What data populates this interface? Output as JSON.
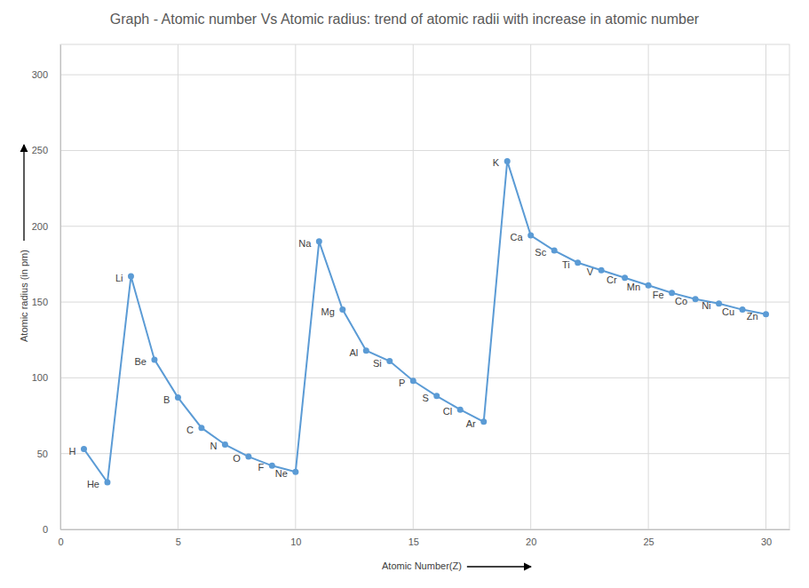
{
  "chart_data": {
    "type": "line",
    "title": "Graph - Atomic number Vs Atomic radius: trend of atomic radii with increase in atomic number",
    "x_label": "Atomic Number(Z)",
    "y_label": "Atomic  radius (in pm)",
    "x": [
      1,
      2,
      3,
      4,
      5,
      6,
      7,
      8,
      9,
      10,
      11,
      12,
      13,
      14,
      15,
      16,
      17,
      18,
      19,
      20,
      21,
      22,
      23,
      24,
      25,
      26,
      27,
      28,
      29,
      30
    ],
    "values": [
      53,
      31,
      167,
      112,
      87,
      67,
      56,
      48,
      42,
      38,
      190,
      145,
      118,
      111,
      98,
      88,
      79,
      71,
      243,
      194,
      184,
      176,
      171,
      166,
      161,
      156,
      152,
      149,
      145,
      142
    ],
    "point_labels": [
      "H",
      "He",
      "Li",
      "Be",
      "B",
      "C",
      "N",
      "O",
      "F",
      "Ne",
      "Na",
      "Mg",
      "Al",
      "Si",
      "P",
      "S",
      "Cl",
      "Ar",
      "K",
      "Ca",
      "Sc",
      "Ti",
      "V",
      "Cr",
      "Mn",
      "Fe",
      "Co",
      "Ni",
      "Cu",
      "Zn"
    ],
    "color": "#5b9bd5",
    "marker": "circle",
    "line_style": "solid",
    "grid": true,
    "xlim": [
      0,
      31
    ],
    "xticks": [
      0,
      5,
      10,
      15,
      20,
      25,
      30
    ],
    "ylim": [
      0,
      320
    ],
    "yticks": [
      0,
      50,
      100,
      150,
      200,
      250,
      300
    ]
  }
}
